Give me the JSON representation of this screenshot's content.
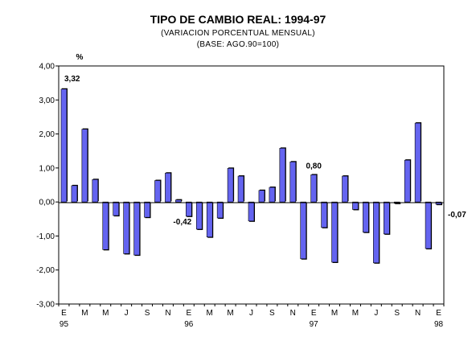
{
  "chart_data": {
    "type": "bar",
    "title": "TIPO DE CAMBIO REAL: 1994-97",
    "subtitle": "(VARIACION PORCENTUAL MENSUAL)",
    "base_note": "(BASE: AGO.90=100)",
    "ylabel": "%",
    "xlabel": "",
    "ylim": [
      -3,
      4
    ],
    "yticks": [
      "4,00",
      "3,00",
      "2,00",
      "1,00",
      "0,00",
      "-1,00",
      "-2,00",
      "-3,00"
    ],
    "xtick_labels": [
      "E",
      "M",
      "M",
      "J",
      "S",
      "N",
      "E",
      "M",
      "M",
      "J",
      "S",
      "N",
      "E",
      "M",
      "M",
      "J",
      "S",
      "N",
      "E"
    ],
    "year_labels": [
      "95",
      "96",
      "97",
      "98"
    ],
    "values": [
      3.32,
      0.48,
      2.14,
      0.66,
      -1.4,
      -0.4,
      -1.52,
      -1.56,
      -0.45,
      0.63,
      0.85,
      0.06,
      -0.42,
      -0.8,
      -1.03,
      -0.47,
      0.99,
      0.76,
      -0.56,
      0.34,
      0.43,
      1.58,
      1.18,
      -1.67,
      0.8,
      -0.75,
      -1.77,
      0.76,
      -0.22,
      -0.89,
      -1.79,
      -0.94,
      -0.04,
      1.23,
      2.32,
      -1.37,
      -0.07
    ],
    "data_labels": [
      {
        "index": 0,
        "text": "3,32"
      },
      {
        "index": 12,
        "text": "-0,42"
      },
      {
        "index": 24,
        "text": "0,80"
      },
      {
        "index": 36,
        "text": "-0,07"
      }
    ],
    "bar_color": "#6464f0",
    "grid": false,
    "legend": "none"
  }
}
